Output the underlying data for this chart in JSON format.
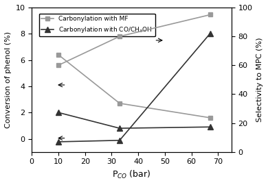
{
  "x": [
    10,
    33,
    67
  ],
  "mf_conversion": [
    6.4,
    2.7,
    1.6
  ],
  "mf_selectivity": [
    60,
    80,
    95
  ],
  "co_conversion": [
    2.0,
    0.8,
    0.9
  ],
  "co_selectivity": [
    7,
    8,
    82
  ],
  "xlabel": "P$_{CO}$ (bar)",
  "ylabel_left": "Conversion of phenol (%)",
  "ylabel_right": "Selectivity to MPC (%)",
  "legend_mf": "Carbonylation with MF",
  "legend_co": "Carbonylation with CO/CH$_3$OH",
  "ylim_left": [
    -1,
    10
  ],
  "ylim_right": [
    0,
    100
  ],
  "xlim": [
    0,
    75
  ],
  "color_mf": "#999999",
  "color_co": "#333333",
  "bg_color": "#ffffff"
}
